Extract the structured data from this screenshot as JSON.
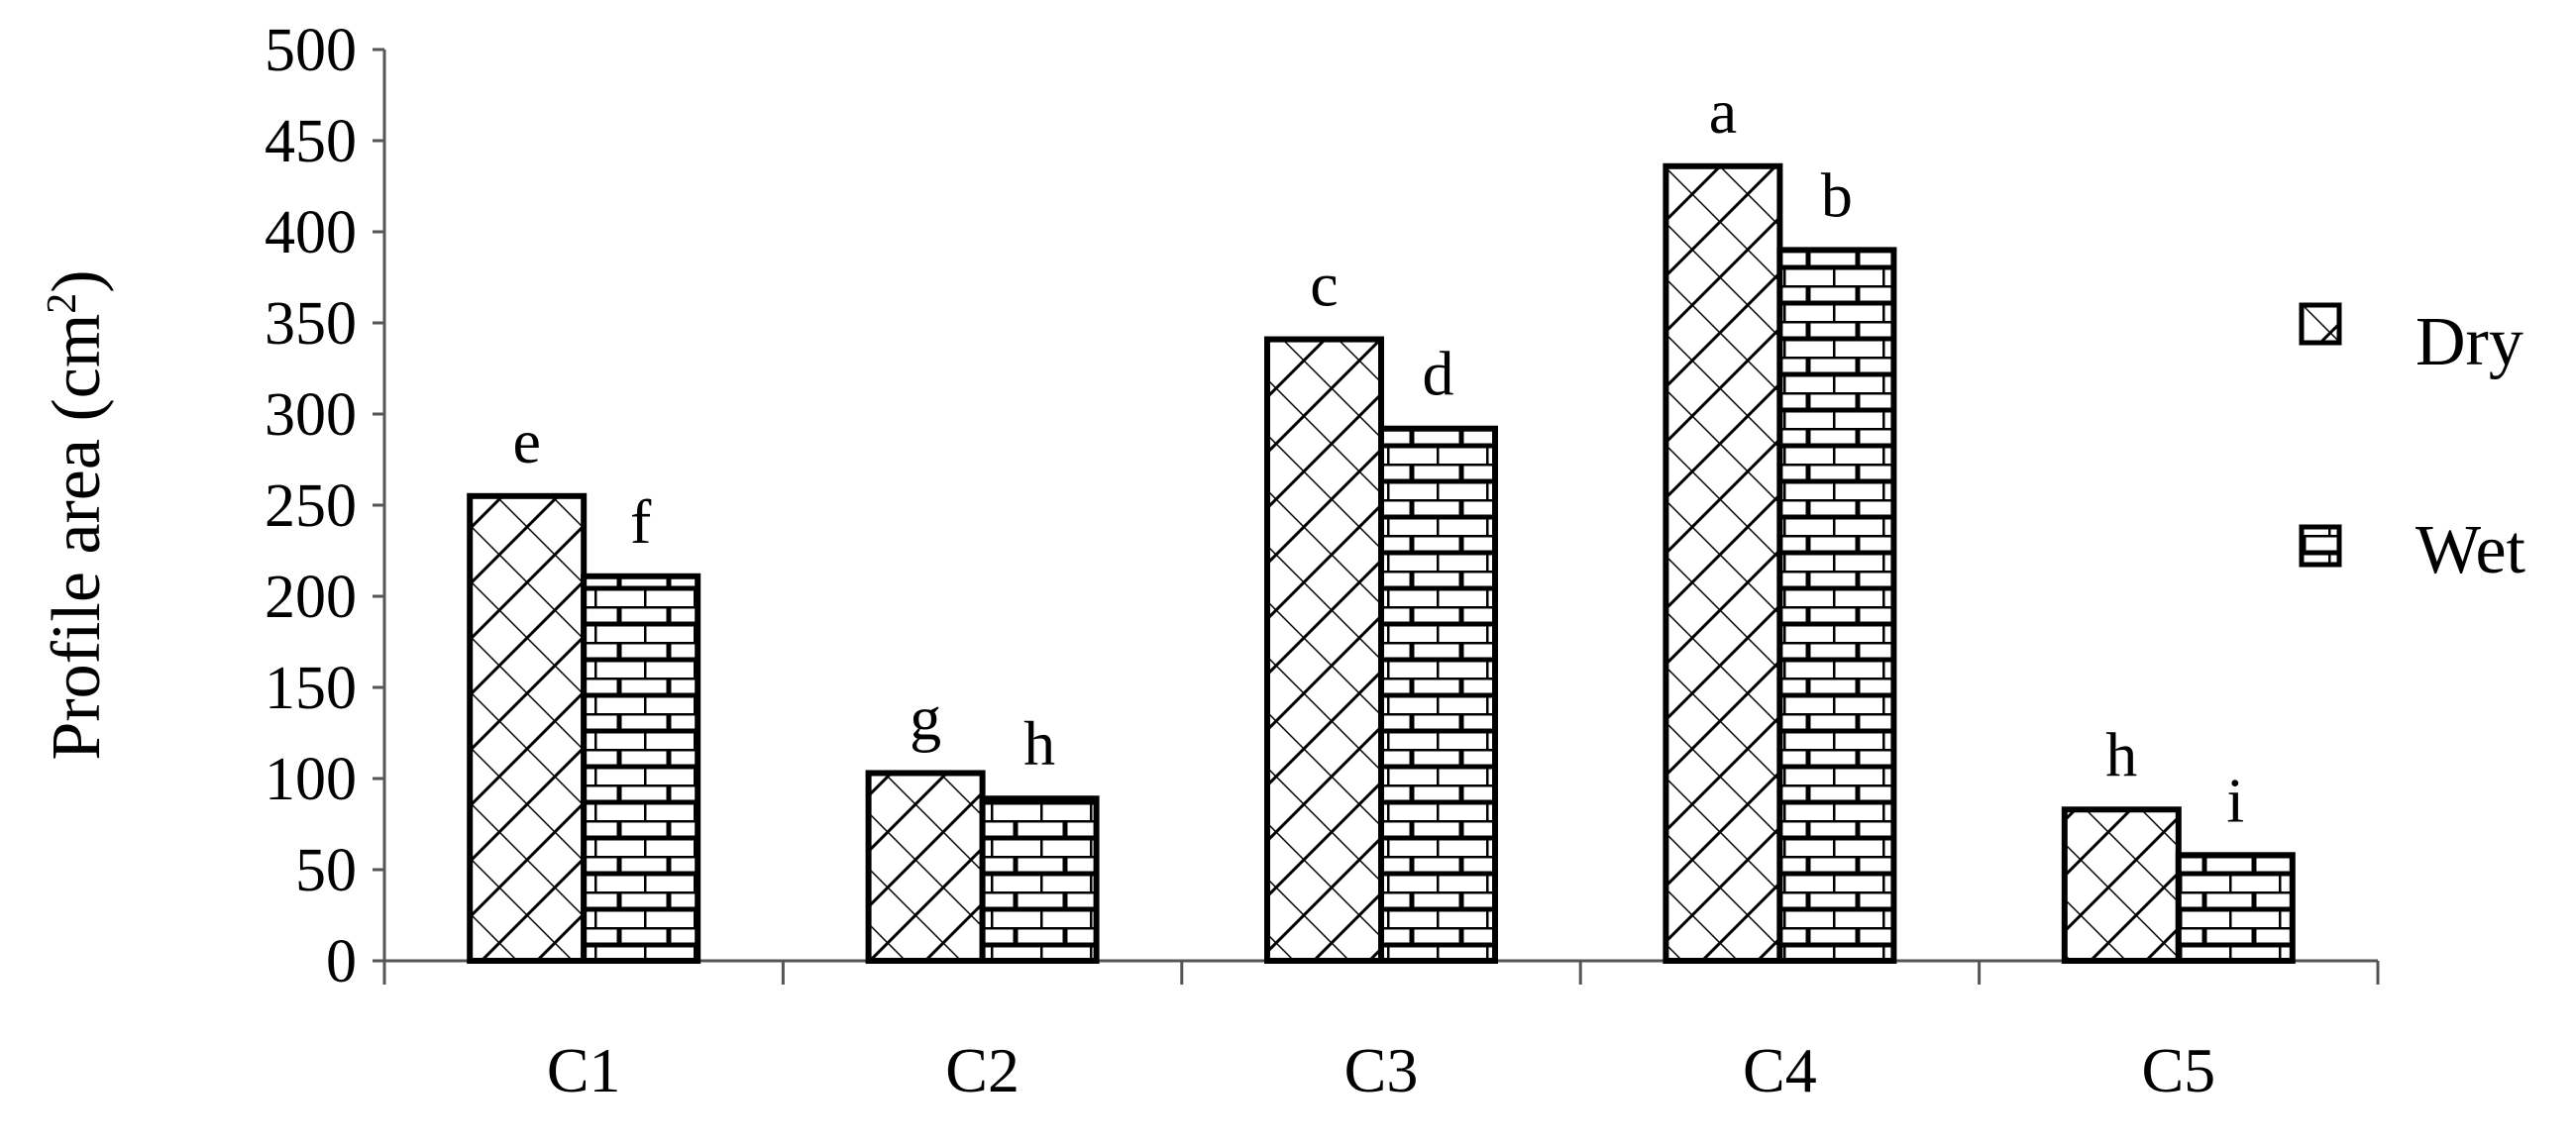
{
  "chart_data": {
    "type": "bar",
    "categories": [
      "C1",
      "C2",
      "C3",
      "C4",
      "C5"
    ],
    "series": [
      {
        "name": "Dry",
        "values": [
          255,
          103,
          341,
          436,
          83
        ],
        "labels": [
          "e",
          "g",
          "c",
          "a",
          "h"
        ],
        "pattern": "diagonal-crosshatch"
      },
      {
        "name": "Wet",
        "values": [
          211,
          89,
          292,
          390,
          58
        ],
        "labels": [
          "f",
          "h",
          "d",
          "b",
          "i"
        ],
        "pattern": "brick"
      }
    ],
    "title": "",
    "xlabel": "",
    "ylabel": "Profile area (cm",
    "ylabel_sup": "2",
    "ylabel_end": ")",
    "ylim": [
      0,
      500
    ],
    "yticks": [
      0,
      50,
      100,
      150,
      200,
      250,
      300,
      350,
      400,
      450,
      500
    ],
    "grid": false,
    "legend": "right"
  }
}
